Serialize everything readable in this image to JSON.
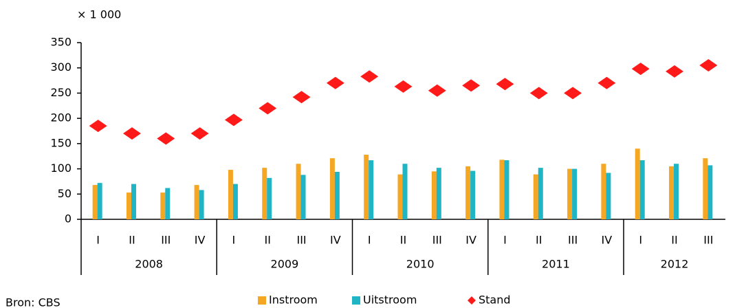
{
  "chart_data": {
    "type": "bar",
    "unit_label": "× 1 000",
    "source": "Bron: CBS",
    "categories": [
      "I",
      "II",
      "III",
      "IV",
      "I",
      "II",
      "III",
      "IV",
      "I",
      "II",
      "III",
      "IV",
      "I",
      "II",
      "III",
      "IV",
      "I",
      "II",
      "III"
    ],
    "groups": [
      "2008",
      "2009",
      "2010",
      "2011",
      "2012"
    ],
    "group_sizes": [
      4,
      4,
      4,
      4,
      3
    ],
    "ylim": [
      0,
      350
    ],
    "yticks": [
      0,
      50,
      100,
      150,
      200,
      250,
      300,
      350
    ],
    "series": [
      {
        "name": "Instroom",
        "color": "#f5a623",
        "kind": "bar",
        "values": [
          68,
          53,
          53,
          68,
          98,
          102,
          110,
          121,
          128,
          89,
          95,
          105,
          118,
          89,
          100,
          110,
          140,
          105,
          121
        ]
      },
      {
        "name": "Uitstroom",
        "color": "#1fb5c4",
        "kind": "bar",
        "values": [
          72,
          70,
          62,
          58,
          70,
          82,
          88,
          94,
          117,
          110,
          102,
          96,
          117,
          102,
          100,
          92,
          117,
          110,
          107
        ]
      },
      {
        "name": "Stand",
        "color": "#ff1a1a",
        "kind": "diamond",
        "values": [
          185,
          170,
          160,
          170,
          197,
          220,
          242,
          270,
          283,
          263,
          255,
          265,
          268,
          250,
          250,
          270,
          298,
          293,
          305
        ]
      }
    ]
  }
}
